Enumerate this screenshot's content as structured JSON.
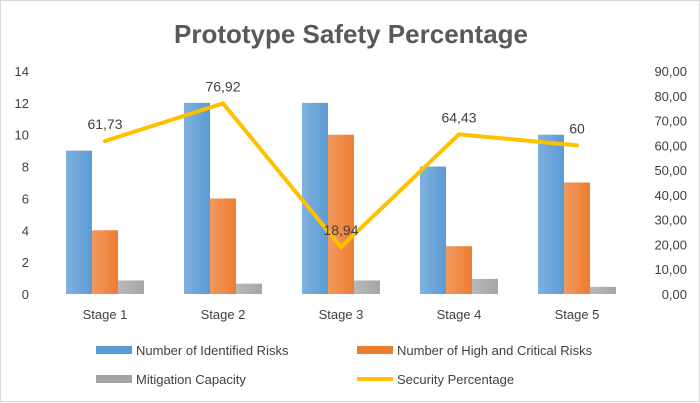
{
  "chart_data": {
    "type": "bar",
    "title": "Prototype Safety Percentage",
    "categories": [
      "Stage 1",
      "Stage 2",
      "Stage 3",
      "Stage 4",
      "Stage 5"
    ],
    "y_left": {
      "min": 0,
      "max": 14,
      "step": 2,
      "ticks": [
        "0",
        "2",
        "4",
        "6",
        "8",
        "10",
        "12",
        "14"
      ]
    },
    "y_right": {
      "min": 0,
      "max": 90,
      "step": 10,
      "ticks": [
        "0,00",
        "10,00",
        "20,00",
        "30,00",
        "40,00",
        "50,00",
        "60,00",
        "70,00",
        "80,00",
        "90,00"
      ]
    },
    "grid": false,
    "legend_position": "bottom",
    "series": [
      {
        "name": "Number of Identified Risks",
        "type": "bar",
        "axis": "left",
        "color": "#5b9bd5",
        "values": [
          9,
          12,
          12,
          8,
          10
        ]
      },
      {
        "name": "Number of High and Critical Risks",
        "type": "bar",
        "axis": "left",
        "color": "#ed7d31",
        "values": [
          4,
          6,
          10,
          3,
          7
        ]
      },
      {
        "name": "Mitigation Capacity",
        "type": "bar",
        "axis": "left",
        "color": "#a5a5a5",
        "values": [
          0.85,
          0.65,
          0.85,
          0.95,
          0.45
        ]
      },
      {
        "name": "Security Percentage",
        "type": "line",
        "axis": "right",
        "color": "#ffc000",
        "values": [
          61.73,
          76.92,
          18.94,
          64.43,
          60
        ],
        "labels": [
          "61,73",
          "76,92",
          "18,94",
          "64,43",
          "60"
        ]
      }
    ]
  }
}
